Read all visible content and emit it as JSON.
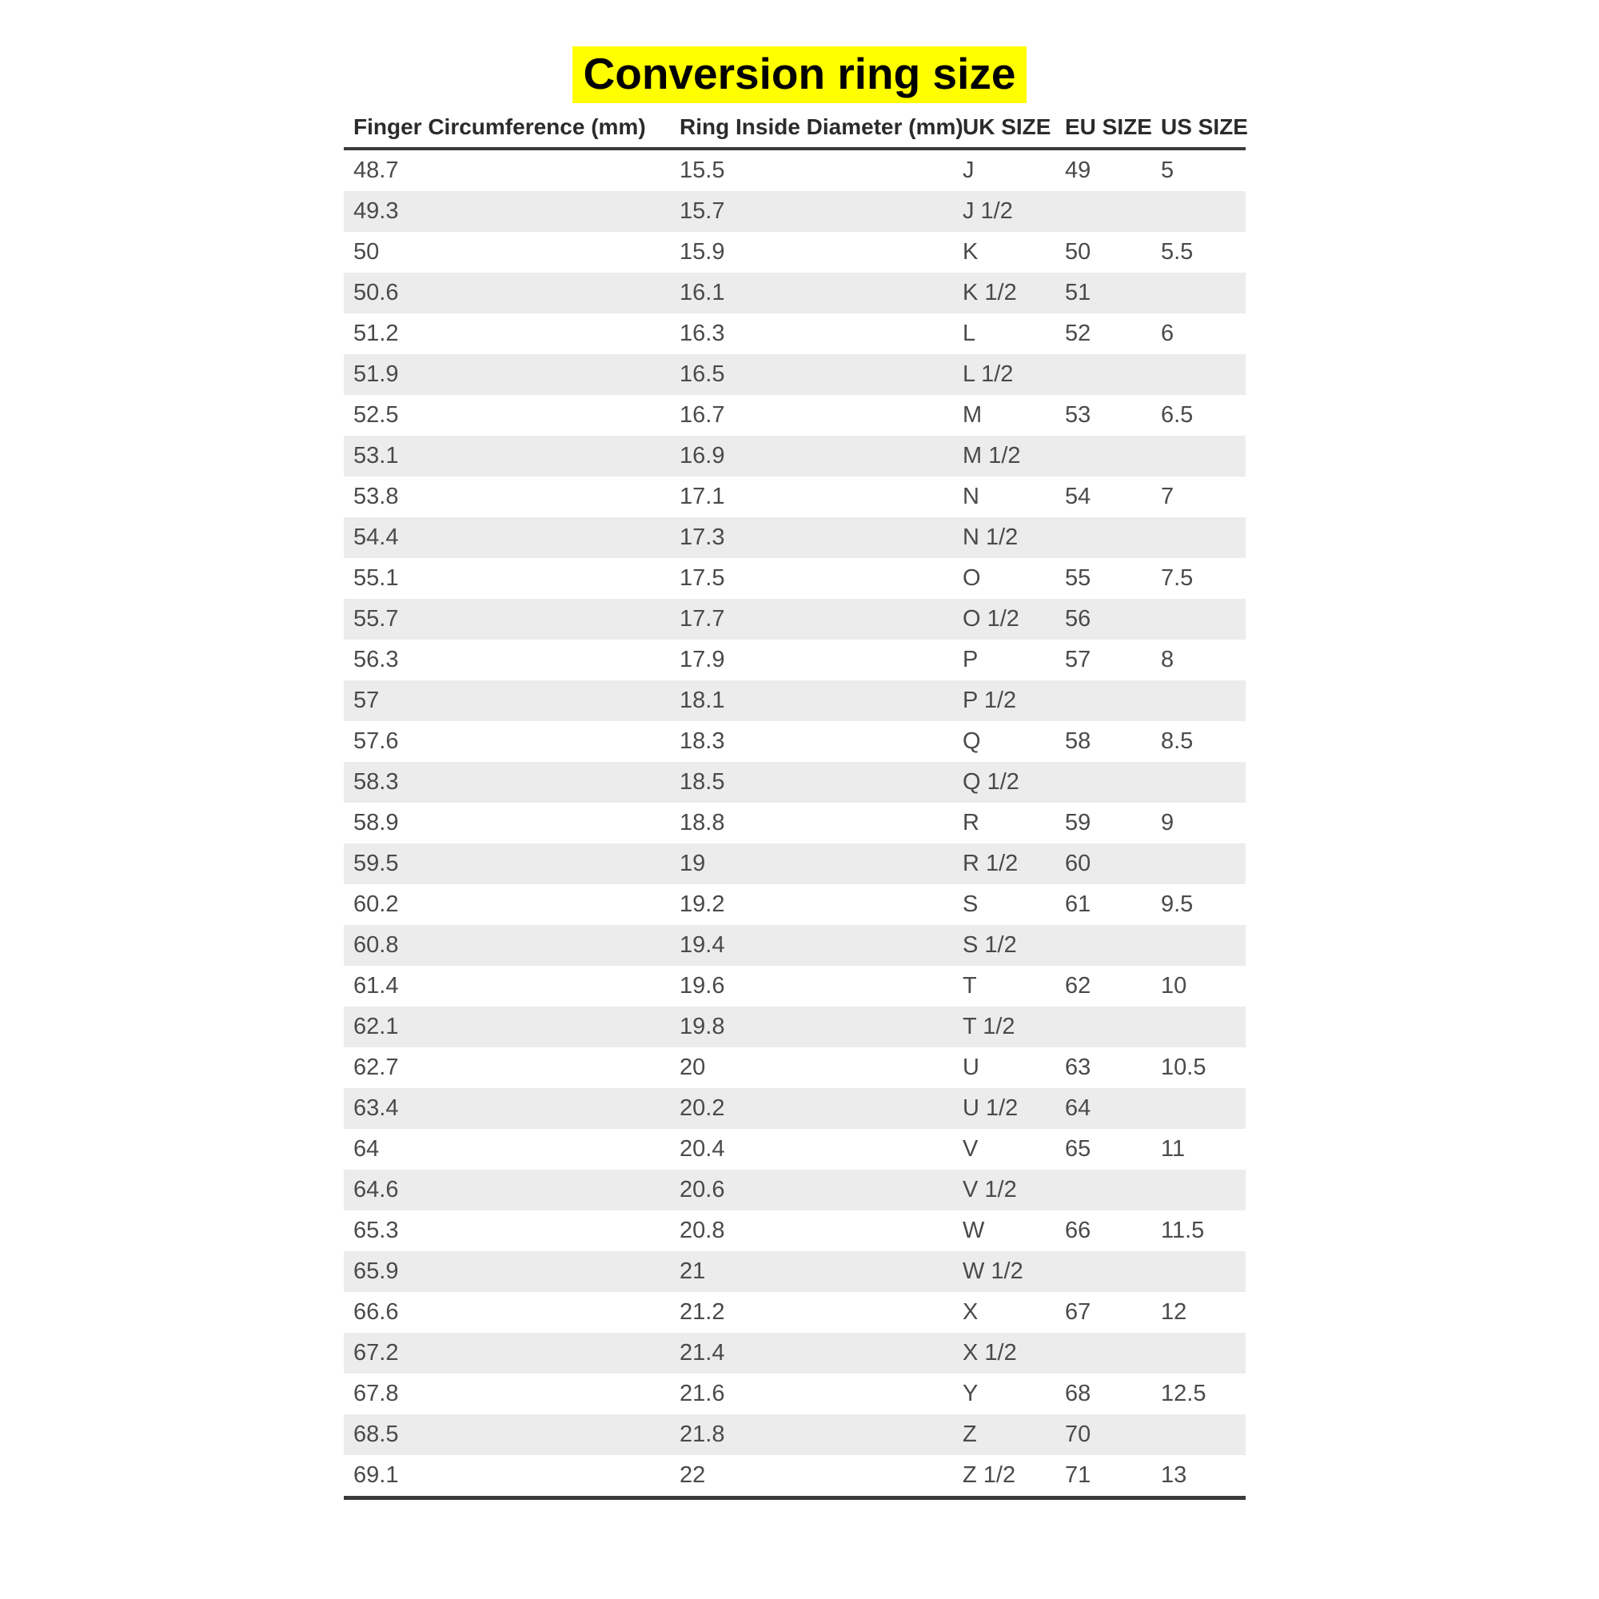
{
  "title": {
    "text": "Conversion ring size",
    "highlight_color": "#ffff00",
    "text_color": "#000000"
  },
  "table": {
    "columns": [
      "Finger Circumference (mm)",
      "Ring Inside Diameter (mm)",
      "UK SIZE",
      "EU SIZE",
      "US SIZE"
    ],
    "column_keys": [
      "finger-circumference",
      "ring-inside-diameter",
      "uk-size",
      "eu-size",
      "us-size"
    ],
    "stripe_color": "#ececec",
    "border_color": "#3a3a3a",
    "header_text_color": "#2b2b2b",
    "cell_text_color": "#4a4a4a",
    "rows": [
      [
        "48.7",
        "15.5",
        "J",
        "49",
        "5"
      ],
      [
        "49.3",
        "15.7",
        "J 1/2",
        "",
        ""
      ],
      [
        "50",
        "15.9",
        "K",
        "50",
        "5.5"
      ],
      [
        "50.6",
        "16.1",
        "K 1/2",
        "51",
        ""
      ],
      [
        "51.2",
        "16.3",
        "L",
        "52",
        "6"
      ],
      [
        "51.9",
        "16.5",
        "L 1/2",
        "",
        ""
      ],
      [
        "52.5",
        "16.7",
        "M",
        "53",
        "6.5"
      ],
      [
        "53.1",
        "16.9",
        "M 1/2",
        "",
        ""
      ],
      [
        "53.8",
        "17.1",
        "N",
        "54",
        "7"
      ],
      [
        "54.4",
        "17.3",
        "N 1/2",
        "",
        ""
      ],
      [
        "55.1",
        "17.5",
        "O",
        "55",
        "7.5"
      ],
      [
        "55.7",
        "17.7",
        "O 1/2",
        "56",
        ""
      ],
      [
        "56.3",
        "17.9",
        "P",
        "57",
        "8"
      ],
      [
        "57",
        "18.1",
        "P 1/2",
        "",
        ""
      ],
      [
        "57.6",
        "18.3",
        "Q",
        "58",
        "8.5"
      ],
      [
        "58.3",
        "18.5",
        "Q 1/2",
        "",
        ""
      ],
      [
        "58.9",
        "18.8",
        "R",
        "59",
        "9"
      ],
      [
        "59.5",
        "19",
        "R 1/2",
        "60",
        ""
      ],
      [
        "60.2",
        "19.2",
        "S",
        "61",
        "9.5"
      ],
      [
        "60.8",
        "19.4",
        "S 1/2",
        "",
        ""
      ],
      [
        "61.4",
        "19.6",
        "T",
        "62",
        "10"
      ],
      [
        "62.1",
        "19.8",
        "T 1/2",
        "",
        ""
      ],
      [
        "62.7",
        "20",
        "U",
        "63",
        "10.5"
      ],
      [
        "63.4",
        "20.2",
        "U 1/2",
        "64",
        ""
      ],
      [
        "64",
        "20.4",
        "V",
        "65",
        "11"
      ],
      [
        "64.6",
        "20.6",
        "V 1/2",
        "",
        ""
      ],
      [
        "65.3",
        "20.8",
        "W",
        "66",
        "11.5"
      ],
      [
        "65.9",
        "21",
        "W 1/2",
        "",
        ""
      ],
      [
        "66.6",
        "21.2",
        "X",
        "67",
        "12"
      ],
      [
        "67.2",
        "21.4",
        "X 1/2",
        "",
        ""
      ],
      [
        "67.8",
        "21.6",
        "Y",
        "68",
        "12.5"
      ],
      [
        "68.5",
        "21.8",
        "Z",
        "70",
        ""
      ],
      [
        "69.1",
        "22",
        "Z 1/2",
        "71",
        "13"
      ]
    ]
  }
}
